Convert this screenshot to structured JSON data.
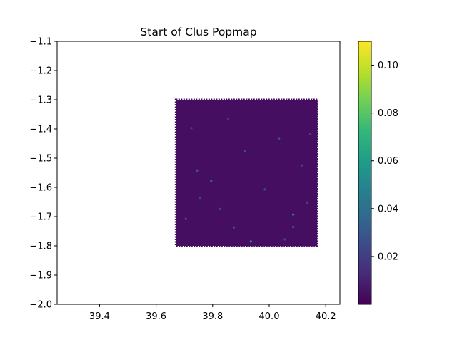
{
  "chart_data": {
    "type": "scatter",
    "title": "Start of Clus Popmap",
    "xlabel": "",
    "ylabel": "",
    "xlim": [
      39.25,
      40.25
    ],
    "ylim": [
      -2.0,
      -1.1
    ],
    "xticks": [
      39.4,
      39.6,
      39.8,
      40.0,
      40.2
    ],
    "xtick_labels": [
      "39.4",
      "39.6",
      "39.8",
      "40.0",
      "40.2"
    ],
    "yticks": [
      -1.1,
      -1.2,
      -1.3,
      -1.4,
      -1.5,
      -1.6,
      -1.7,
      -1.8,
      -1.9,
      -2.0
    ],
    "ytick_labels": [
      "−1.1",
      "−1.2",
      "−1.3",
      "−1.4",
      "−1.5",
      "−1.6",
      "−1.7",
      "−1.8",
      "−1.9",
      "−2.0"
    ],
    "grid": false,
    "colormap": "viridis",
    "colorbar": {
      "range": [
        0.0,
        0.11
      ],
      "ticks": [
        0.02,
        0.04,
        0.06,
        0.08,
        0.1
      ],
      "tick_labels": [
        "0.02",
        "0.04",
        "0.06",
        "0.08",
        "0.10"
      ]
    },
    "region": {
      "x_range": [
        39.67,
        40.17
      ],
      "y_range": [
        -1.8,
        -1.3
      ],
      "base_value": 0.004
    },
    "highlight_points": [
      {
        "x": 39.935,
        "y": -1.785,
        "value": 0.055
      },
      {
        "x": 40.085,
        "y": -1.693,
        "value": 0.045
      },
      {
        "x": 39.795,
        "y": -1.578,
        "value": 0.035
      },
      {
        "x": 39.745,
        "y": -1.542,
        "value": 0.035
      },
      {
        "x": 40.035,
        "y": -1.432,
        "value": 0.033
      },
      {
        "x": 40.085,
        "y": -1.735,
        "value": 0.033
      },
      {
        "x": 39.875,
        "y": -1.737,
        "value": 0.03
      },
      {
        "x": 39.705,
        "y": -1.708,
        "value": 0.028
      },
      {
        "x": 39.985,
        "y": -1.607,
        "value": 0.028
      },
      {
        "x": 40.135,
        "y": -1.652,
        "value": 0.026
      },
      {
        "x": 39.755,
        "y": -1.635,
        "value": 0.026
      },
      {
        "x": 39.915,
        "y": -1.476,
        "value": 0.025
      },
      {
        "x": 39.825,
        "y": -1.674,
        "value": 0.025
      },
      {
        "x": 40.115,
        "y": -1.525,
        "value": 0.024
      },
      {
        "x": 39.725,
        "y": -1.397,
        "value": 0.022
      },
      {
        "x": 40.055,
        "y": -1.778,
        "value": 0.022
      },
      {
        "x": 39.855,
        "y": -1.365,
        "value": 0.021
      },
      {
        "x": 40.145,
        "y": -1.418,
        "value": 0.021
      }
    ]
  }
}
